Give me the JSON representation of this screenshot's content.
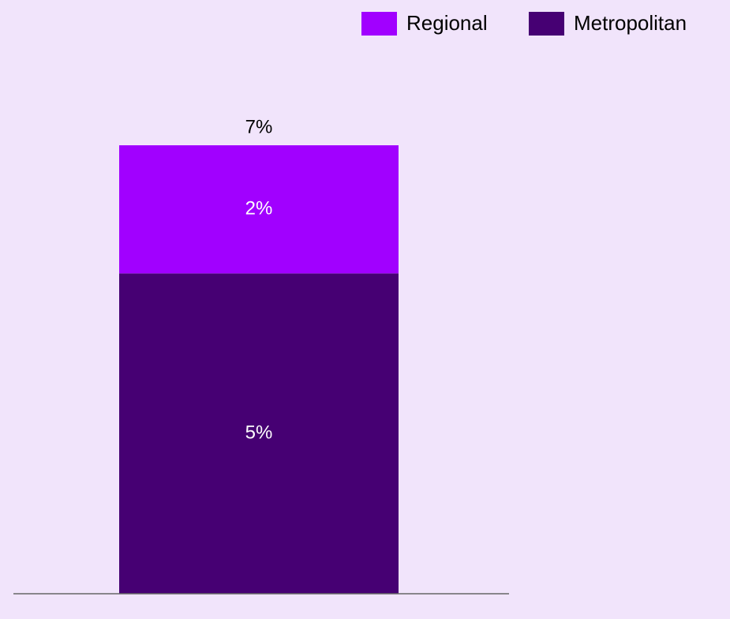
{
  "chart_data": {
    "type": "stacked_bar",
    "categories": [
      null
    ],
    "series": [
      {
        "name": "Metropolitan",
        "color": "#460073",
        "values": [
          5
        ],
        "value_labels": [
          "5%"
        ]
      },
      {
        "name": "Regional",
        "color": "#a100ff",
        "values": [
          2
        ],
        "value_labels": [
          "2%"
        ]
      }
    ],
    "totals": [
      7
    ],
    "total_labels": [
      "7%"
    ],
    "legend": "top-right"
  }
}
